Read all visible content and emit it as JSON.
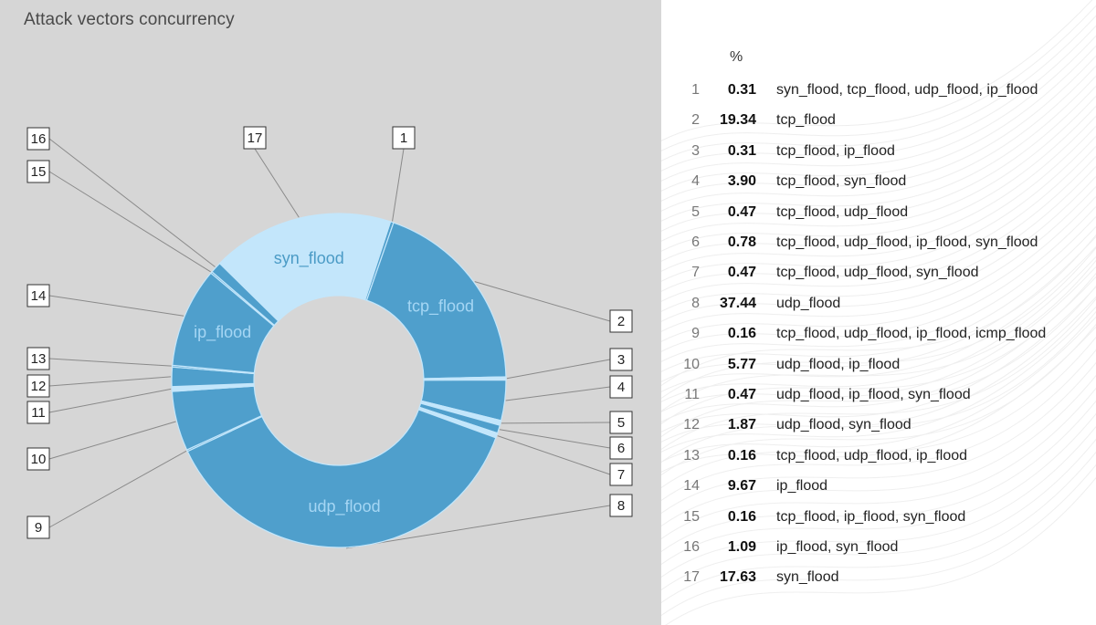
{
  "chart_data": {
    "type": "donut",
    "title": "Attack vectors concurrency",
    "value_header": "%",
    "segments": [
      {
        "id": "1",
        "value": 0.31,
        "vectors": "syn_flood, tcp_flood, udp_flood, ip_flood"
      },
      {
        "id": "2",
        "value": 19.34,
        "vectors": "tcp_flood",
        "label": "tcp_flood"
      },
      {
        "id": "3",
        "value": 0.31,
        "vectors": "tcp_flood, ip_flood"
      },
      {
        "id": "4",
        "value": 3.9,
        "vectors": "tcp_flood, syn_flood"
      },
      {
        "id": "5",
        "value": 0.47,
        "vectors": "tcp_flood, udp_flood"
      },
      {
        "id": "6",
        "value": 0.78,
        "vectors": "tcp_flood, udp_flood, ip_flood, syn_flood"
      },
      {
        "id": "7",
        "value": 0.47,
        "vectors": "tcp_flood, udp_flood, syn_flood"
      },
      {
        "id": "8",
        "value": 37.44,
        "vectors": "udp_flood",
        "label": "udp_flood"
      },
      {
        "id": "9",
        "value": 0.16,
        "vectors": "tcp_flood, udp_flood, ip_flood, icmp_flood"
      },
      {
        "id": "10",
        "value": 5.77,
        "vectors": "udp_flood, ip_flood"
      },
      {
        "id": "11",
        "value": 0.47,
        "vectors": "udp_flood, ip_flood, syn_flood"
      },
      {
        "id": "12",
        "value": 1.87,
        "vectors": "udp_flood, syn_flood"
      },
      {
        "id": "13",
        "value": 0.16,
        "vectors": "tcp_flood, udp_flood, ip_flood"
      },
      {
        "id": "14",
        "value": 9.67,
        "vectors": "ip_flood",
        "label": "ip_flood"
      },
      {
        "id": "15",
        "value": 0.16,
        "vectors": "tcp_flood, ip_flood, syn_flood"
      },
      {
        "id": "16",
        "value": 1.09,
        "vectors": "ip_flood, syn_flood"
      },
      {
        "id": "17",
        "value": 17.63,
        "vectors": "syn_flood",
        "label": "syn_flood"
      }
    ]
  },
  "colors": {
    "dark_segment": "#4f9fcc",
    "light_segment": "#c3e6fb",
    "label_on_dark": "#a5d6f4",
    "label_on_light": "#4b9bc6",
    "leader_line": "#8a8a8a",
    "panel_background": "#d6d6d6"
  }
}
